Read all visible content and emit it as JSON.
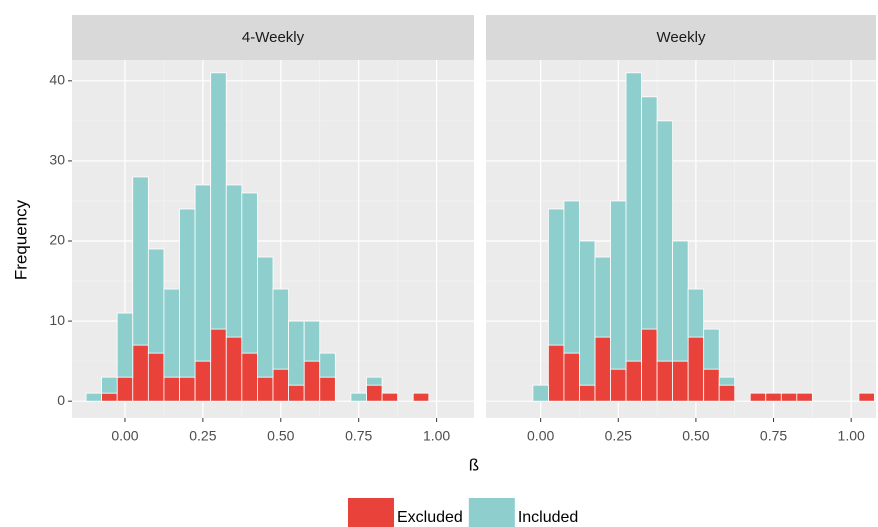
{
  "chart_data": {
    "type": "histogram",
    "stacked": true,
    "grid": true,
    "x_label": "ß",
    "y_label": "Frequency",
    "legend": "bottom",
    "series": [
      {
        "name": "Excluded",
        "color": "#e8423a"
      },
      {
        "name": "Included",
        "color": "#8ecfce"
      }
    ],
    "bins": [
      -0.125,
      -0.075,
      -0.025,
      0.025,
      0.075,
      0.125,
      0.175,
      0.225,
      0.275,
      0.325,
      0.375,
      0.425,
      0.475,
      0.525,
      0.575,
      0.625,
      0.675,
      0.725,
      0.775,
      0.825,
      0.875,
      0.925,
      0.975,
      1.025,
      1.075
    ],
    "ylim": [
      -2.1,
      42.6
    ],
    "yticks": [
      0,
      10,
      20,
      30,
      40
    ],
    "facets": [
      {
        "title": "4-Weekly",
        "xlim": [
          -0.17,
          1.12
        ],
        "xticks": [
          {
            "value": 0,
            "label": "0.00"
          },
          {
            "value": 0.25,
            "label": "0.25"
          },
          {
            "value": 0.5,
            "label": "0.50"
          },
          {
            "value": 0.75,
            "label": "0.75"
          },
          {
            "value": 1,
            "label": "1.00"
          }
        ],
        "values": [
          [
            0,
            1,
            3,
            7,
            6,
            3,
            3,
            5,
            9,
            8,
            6,
            3,
            4,
            2,
            5,
            3,
            0,
            0,
            2,
            1,
            0,
            1,
            0,
            0
          ],
          [
            1,
            2,
            8,
            21,
            13,
            11,
            21,
            22,
            32,
            19,
            20,
            15,
            10,
            8,
            5,
            3,
            0,
            1,
            1,
            0,
            0,
            0,
            0,
            0
          ]
        ]
      },
      {
        "title": "Weekly",
        "xlim": [
          -0.176,
          1.08
        ],
        "xticks": [
          {
            "value": 0,
            "label": "0.00"
          },
          {
            "value": 0.25,
            "label": "0.25"
          },
          {
            "value": 0.5,
            "label": "0.50"
          },
          {
            "value": 0.75,
            "label": "0.75"
          },
          {
            "value": 1,
            "label": "1.00"
          }
        ],
        "values": [
          [
            0,
            0,
            0,
            7,
            6,
            2,
            8,
            4,
            5,
            9,
            5,
            5,
            8,
            4,
            2,
            0,
            1,
            1,
            1,
            1,
            0,
            0,
            0,
            1
          ],
          [
            0,
            0,
            2,
            17,
            19,
            18,
            10,
            21,
            36,
            29,
            30,
            15,
            6,
            5,
            1,
            0,
            0,
            0,
            0,
            0,
            0,
            0,
            0,
            0
          ]
        ]
      }
    ]
  }
}
